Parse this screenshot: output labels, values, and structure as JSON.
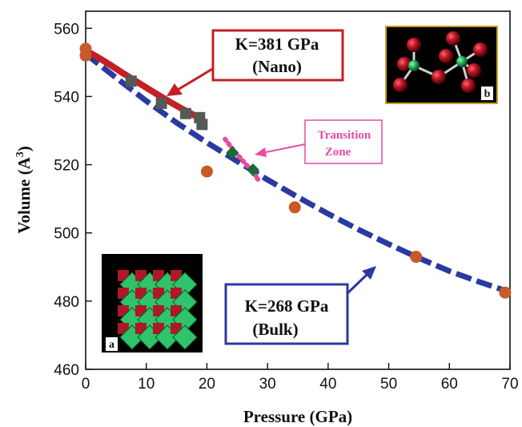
{
  "chart_data": {
    "type": "scatter",
    "title": "",
    "xlabel": "Pressure (GPa)",
    "ylabel_main": "Volume (A",
    "ylabel_sup": "3",
    "ylabel_close": ")",
    "xlim": [
      0,
      70
    ],
    "ylim": [
      460,
      565
    ],
    "x_ticks": [
      0,
      10,
      20,
      30,
      40,
      50,
      60,
      70
    ],
    "y_ticks": [
      460,
      480,
      500,
      520,
      540,
      560
    ],
    "series": [
      {
        "kind": "fit",
        "color": "#c41f24",
        "x": [
          0,
          2,
          4,
          6,
          8,
          10,
          12,
          14,
          16,
          18,
          19
        ],
        "y": [
          553.5,
          551.5,
          549.3,
          547.0,
          544.8,
          542.6,
          540.4,
          538.3,
          536.3,
          534.4,
          533.4
        ]
      },
      {
        "kind": "fit-dashed",
        "color": "#2b3aa0",
        "x": [
          0,
          5,
          10,
          15,
          20,
          25,
          30,
          35,
          40,
          45,
          50,
          55,
          60,
          65,
          69
        ],
        "y": [
          552.5,
          545.5,
          538.7,
          532.3,
          526.5,
          521.0,
          515.6,
          510.5,
          505.6,
          501.0,
          496.7,
          492.6,
          488.8,
          485.6,
          483.2
        ]
      },
      {
        "kind": "points-square",
        "color": "#555a55",
        "x": [
          7.5,
          12.5,
          16.5,
          18.8,
          19.2
        ],
        "y": [
          544.5,
          538.0,
          535.0,
          533.8,
          531.8
        ]
      },
      {
        "kind": "points-circle",
        "color": "#c75a28",
        "x": [
          0,
          0,
          20,
          34.5,
          54.5,
          69.2
        ],
        "y": [
          554.0,
          552.0,
          518.0,
          507.5,
          493.0,
          482.5
        ]
      },
      {
        "kind": "points-diamond",
        "color": "#1c6b35",
        "x": [
          24.2,
          27.6
        ],
        "y": [
          523.5,
          518.5
        ]
      },
      {
        "kind": "transition-dotted",
        "color": "#e64ca0",
        "x": [
          23.0,
          24.5,
          26.0,
          27.5,
          28.5
        ],
        "y": [
          527.5,
          524.0,
          521.0,
          518.0,
          515.5
        ]
      }
    ],
    "annotations": {
      "nano": {
        "line1": "K=381 GPa",
        "line2": "(Nano)",
        "border": "#c41f24",
        "arrow": "#c41f24"
      },
      "bulk": {
        "line1": "K=268 GPa",
        "line2": "(Bulk)",
        "border": "#2b3aa0",
        "arrow": "#2b3aa0"
      },
      "transition": {
        "line1": "Transition",
        "line2": "Zone",
        "border": "#e64ca0",
        "arrow": "#e64ca0"
      }
    },
    "insets": {
      "a": {
        "letter": "a"
      },
      "b": {
        "letter": "b"
      }
    },
    "colors": {
      "green": "#2fc46b",
      "red": "#b01828",
      "inset_border": "#c8a020"
    }
  }
}
